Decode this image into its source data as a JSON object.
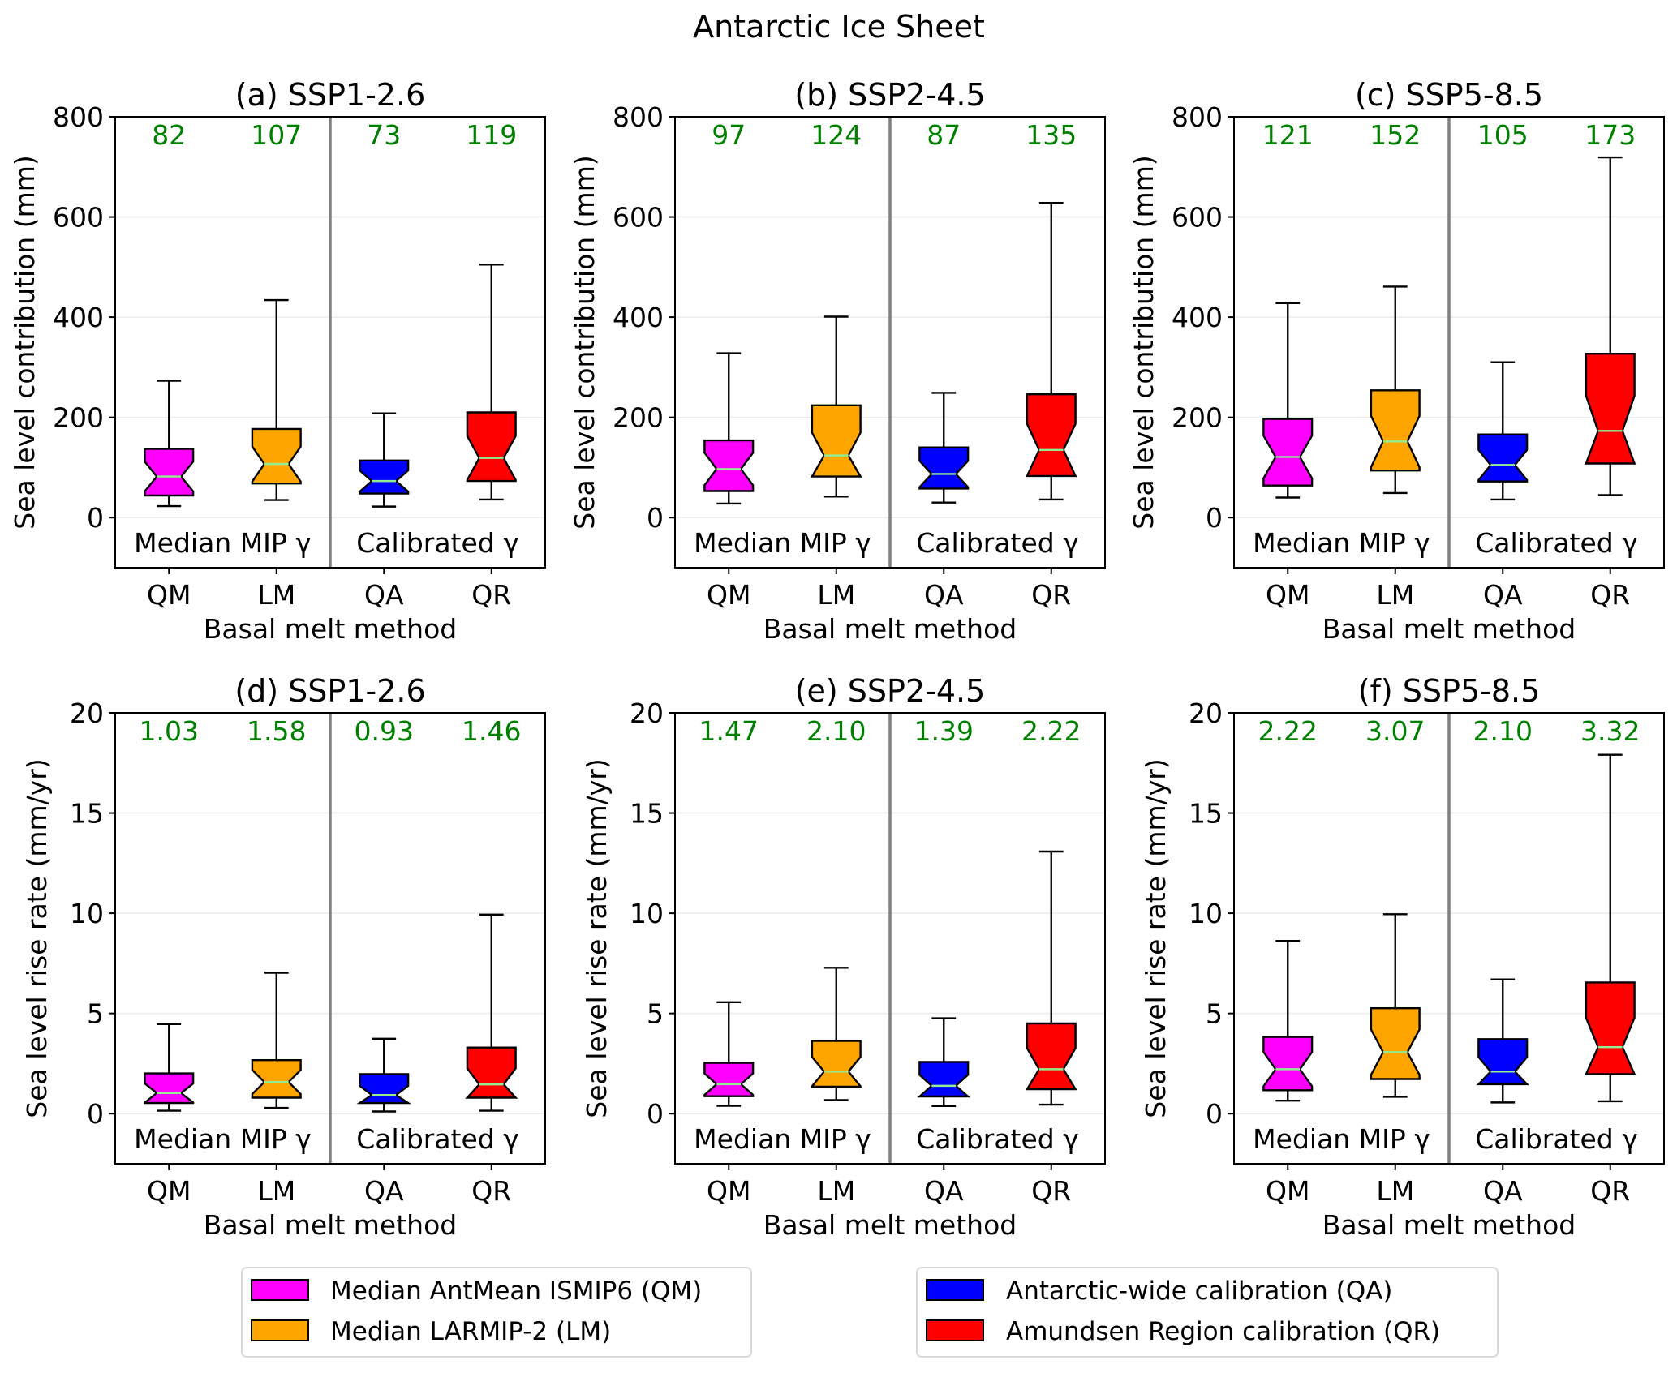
{
  "chart_data": {
    "type": "boxplot",
    "title": "Antarctic Ice Sheet",
    "categories": [
      "QM",
      "LM",
      "QA",
      "QR"
    ],
    "group_labels": [
      "Median MIP γ",
      "Calibrated γ"
    ],
    "colors": {
      "QM": "#ff00ff",
      "LM": "#ffa500",
      "QA": "#0000ff",
      "QR": "#ff0000",
      "annotation": "#008000",
      "median": "#90ee90",
      "divider": "#808080"
    },
    "legend": {
      "placement": "bottom",
      "left": [
        {
          "key": "QM",
          "label": "Median AntMean ISMIP6 (QM)"
        },
        {
          "key": "LM",
          "label": "Median LARMIP-2 (LM)"
        }
      ],
      "right": [
        {
          "key": "QA",
          "label": "Antarctic-wide calibration (QA)"
        },
        {
          "key": "QR",
          "label": "Amundsen Region calibration (QR)"
        }
      ]
    },
    "panels": [
      {
        "title": "(a) SSP1-2.6",
        "ylabel": "Sea level contribution (mm)",
        "xlabel": "Basal melt method",
        "ylim": [
          -100,
          800
        ],
        "yticks": [
          0,
          200,
          400,
          600,
          800
        ],
        "grid": true,
        "annotations": [
          "82",
          "107",
          "73",
          "119"
        ],
        "boxes": [
          {
            "cat": "QM",
            "whislo": 23,
            "q1": 44,
            "med": 82,
            "q3": 137,
            "whishi": 273
          },
          {
            "cat": "LM",
            "whislo": 35,
            "q1": 68,
            "med": 107,
            "q3": 177,
            "whishi": 434
          },
          {
            "cat": "QA",
            "whislo": 22,
            "q1": 48,
            "med": 73,
            "q3": 114,
            "whishi": 208
          },
          {
            "cat": "QR",
            "whislo": 36,
            "q1": 73,
            "med": 119,
            "q3": 210,
            "whishi": 505
          }
        ]
      },
      {
        "title": "(b) SSP2-4.5",
        "ylabel": "Sea level contribution (mm)",
        "xlabel": "Basal melt method",
        "ylim": [
          -100,
          800
        ],
        "yticks": [
          0,
          200,
          400,
          600,
          800
        ],
        "grid": true,
        "annotations": [
          "97",
          "124",
          "87",
          "135"
        ],
        "boxes": [
          {
            "cat": "QM",
            "whislo": 28,
            "q1": 53,
            "med": 97,
            "q3": 154,
            "whishi": 328
          },
          {
            "cat": "LM",
            "whislo": 42,
            "q1": 82,
            "med": 124,
            "q3": 224,
            "whishi": 401
          },
          {
            "cat": "QA",
            "whislo": 30,
            "q1": 58,
            "med": 87,
            "q3": 140,
            "whishi": 249
          },
          {
            "cat": "QR",
            "whislo": 36,
            "q1": 83,
            "med": 135,
            "q3": 246,
            "whishi": 628
          }
        ]
      },
      {
        "title": "(c) SSP5-8.5",
        "ylabel": "Sea level contribution (mm)",
        "xlabel": "Basal melt method",
        "ylim": [
          -100,
          800
        ],
        "yticks": [
          0,
          200,
          400,
          600,
          800
        ],
        "grid": true,
        "annotations": [
          "121",
          "152",
          "105",
          "173"
        ],
        "boxes": [
          {
            "cat": "QM",
            "whislo": 40,
            "q1": 64,
            "med": 121,
            "q3": 197,
            "whishi": 428
          },
          {
            "cat": "LM",
            "whislo": 49,
            "q1": 94,
            "med": 152,
            "q3": 254,
            "whishi": 461
          },
          {
            "cat": "QA",
            "whislo": 36,
            "q1": 72,
            "med": 105,
            "q3": 166,
            "whishi": 310
          },
          {
            "cat": "QR",
            "whislo": 45,
            "q1": 108,
            "med": 173,
            "q3": 327,
            "whishi": 719
          }
        ]
      },
      {
        "title": "(d) SSP1-2.6",
        "ylabel": "Sea level rise rate (mm/yr)",
        "xlabel": "Basal melt method",
        "ylim": [
          -2.5,
          20
        ],
        "yticks": [
          0,
          5,
          10,
          15,
          20
        ],
        "grid": true,
        "annotations": [
          "1.03",
          "1.58",
          "0.93",
          "1.46"
        ],
        "boxes": [
          {
            "cat": "QM",
            "whislo": 0.15,
            "q1": 0.53,
            "med": 1.03,
            "q3": 2.01,
            "whishi": 4.47
          },
          {
            "cat": "LM",
            "whislo": 0.29,
            "q1": 0.8,
            "med": 1.58,
            "q3": 2.67,
            "whishi": 7.03
          },
          {
            "cat": "QA",
            "whislo": 0.11,
            "q1": 0.53,
            "med": 0.93,
            "q3": 1.97,
            "whishi": 3.74
          },
          {
            "cat": "QR",
            "whislo": 0.15,
            "q1": 0.8,
            "med": 1.46,
            "q3": 3.3,
            "whishi": 9.93
          }
        ]
      },
      {
        "title": "(e) SSP2-4.5",
        "ylabel": "Sea level rise rate (mm/yr)",
        "xlabel": "Basal melt method",
        "ylim": [
          -2.5,
          20
        ],
        "yticks": [
          0,
          5,
          10,
          15,
          20
        ],
        "grid": true,
        "annotations": [
          "1.47",
          "2.10",
          "1.39",
          "2.22"
        ],
        "boxes": [
          {
            "cat": "QM",
            "whislo": 0.39,
            "q1": 0.87,
            "med": 1.47,
            "q3": 2.54,
            "whishi": 5.56
          },
          {
            "cat": "LM",
            "whislo": 0.68,
            "q1": 1.35,
            "med": 2.1,
            "q3": 3.63,
            "whishi": 7.28
          },
          {
            "cat": "QA",
            "whislo": 0.38,
            "q1": 0.86,
            "med": 1.39,
            "q3": 2.58,
            "whishi": 4.76
          },
          {
            "cat": "QR",
            "whislo": 0.45,
            "q1": 1.22,
            "med": 2.22,
            "q3": 4.5,
            "whishi": 13.08
          }
        ]
      },
      {
        "title": "(f) SSP5-8.5",
        "ylabel": "Sea level rise rate (mm/yr)",
        "xlabel": "Basal melt method",
        "ylim": [
          -2.5,
          20
        ],
        "yticks": [
          0,
          5,
          10,
          15,
          20
        ],
        "grid": true,
        "annotations": [
          "2.22",
          "3.07",
          "2.10",
          "3.32"
        ],
        "boxes": [
          {
            "cat": "QM",
            "whislo": 0.65,
            "q1": 1.17,
            "med": 2.22,
            "q3": 3.83,
            "whishi": 8.62
          },
          {
            "cat": "LM",
            "whislo": 0.84,
            "q1": 1.73,
            "med": 3.07,
            "q3": 5.26,
            "whishi": 9.95
          },
          {
            "cat": "QA",
            "whislo": 0.56,
            "q1": 1.47,
            "med": 2.1,
            "q3": 3.72,
            "whishi": 6.7
          },
          {
            "cat": "QR",
            "whislo": 0.62,
            "q1": 1.97,
            "med": 3.32,
            "q3": 6.55,
            "whishi": 17.91
          }
        ]
      }
    ]
  }
}
